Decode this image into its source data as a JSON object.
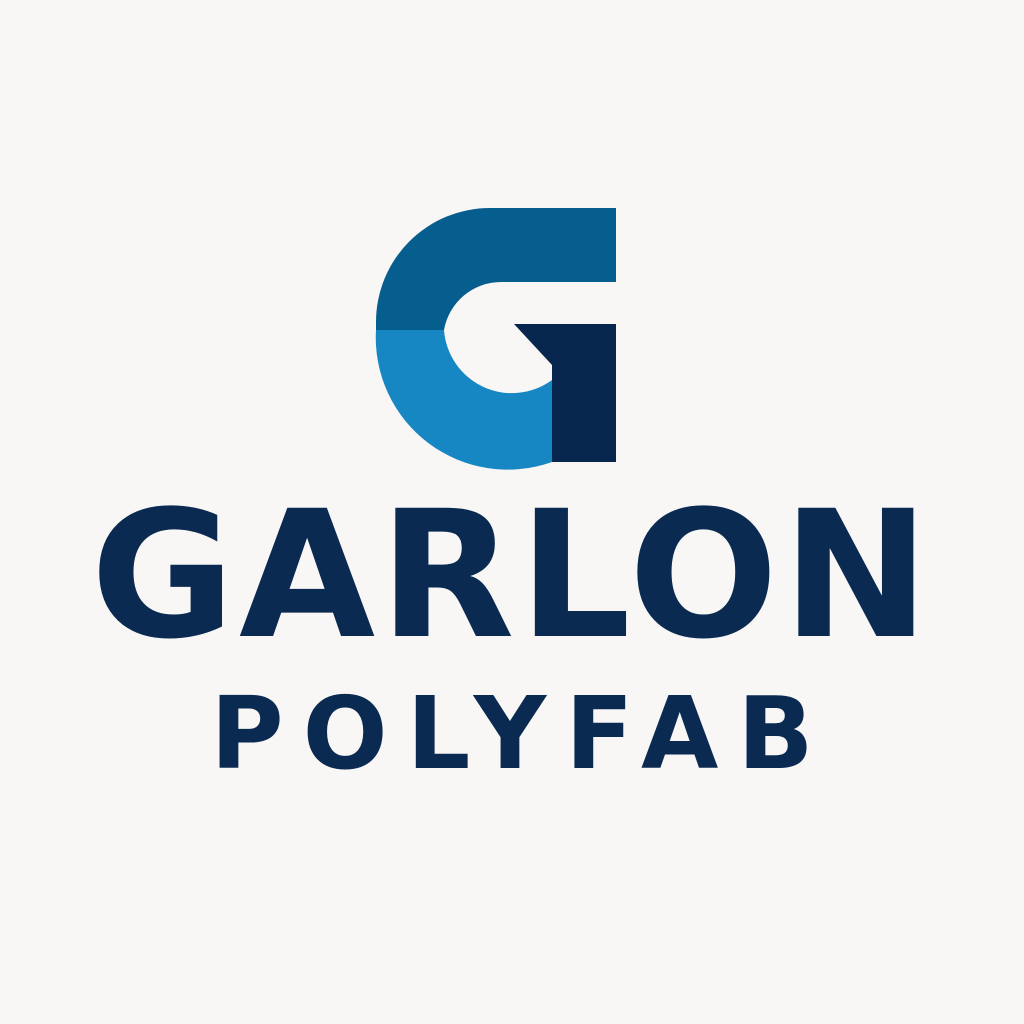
{
  "logo": {
    "icon": "g-monogram-icon",
    "colors": {
      "top": "#055e8e",
      "bottom": "#1787c4",
      "bar": "#06264d",
      "text": "#0b2a52",
      "background": "#f8f7f5"
    }
  },
  "brand": {
    "name": "GARLON",
    "tagline": "POLYFAB"
  }
}
